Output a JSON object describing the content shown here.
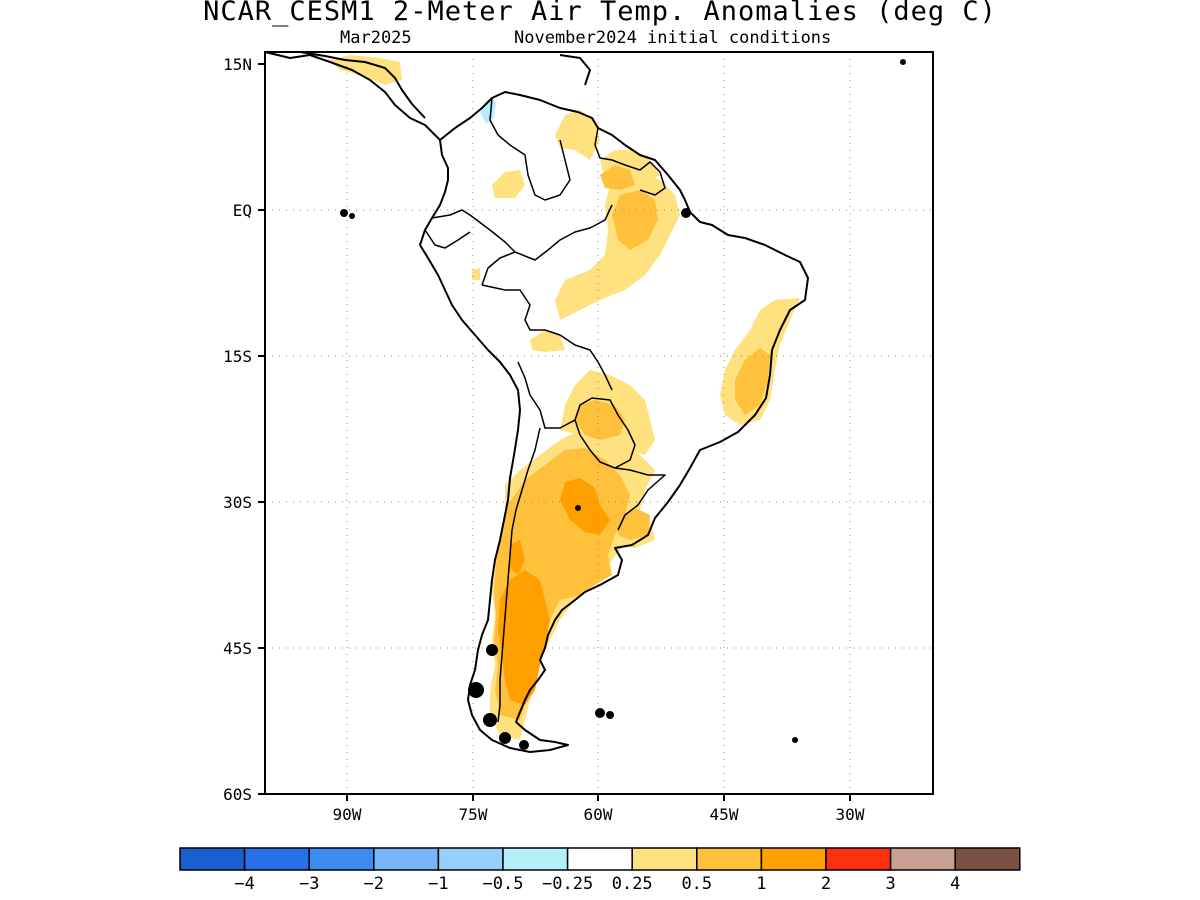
{
  "title": "NCAR_CESM1 2-Meter Air Temp. Anomalies (deg C)",
  "subtitle_month": "Mar2025",
  "subtitle_init": "November2024 initial conditions",
  "map": {
    "lat_range": [
      -60,
      15
    ],
    "lon_range": [
      -100,
      -20
    ],
    "lat_labels": [
      "15N",
      "EQ",
      "15S",
      "30S",
      "45S",
      "60S"
    ],
    "lon_labels": [
      "90W",
      "75W",
      "60W",
      "45W",
      "30W"
    ],
    "grid": "dotted"
  },
  "colorbar": {
    "colors": [
      "#1860d0",
      "#2870e8",
      "#3c8cf0",
      "#78b4f8",
      "#96d0fa",
      "#b4f0fa",
      "#ffffff",
      "#ffe180",
      "#ffc03c",
      "#ffa000",
      "#ff3010",
      "#c8a090",
      "#7a5040"
    ],
    "labels": [
      "−4",
      "−3",
      "−2",
      "−1",
      "−0.5",
      "−0.25",
      "0.25",
      "0.5",
      "1",
      "2",
      "3",
      "4"
    ]
  },
  "anomaly_colors": {
    "light": "#ffe180",
    "medium": "#ffc03c",
    "strong": "#ffa000",
    "cool": "#b4f0fa"
  }
}
